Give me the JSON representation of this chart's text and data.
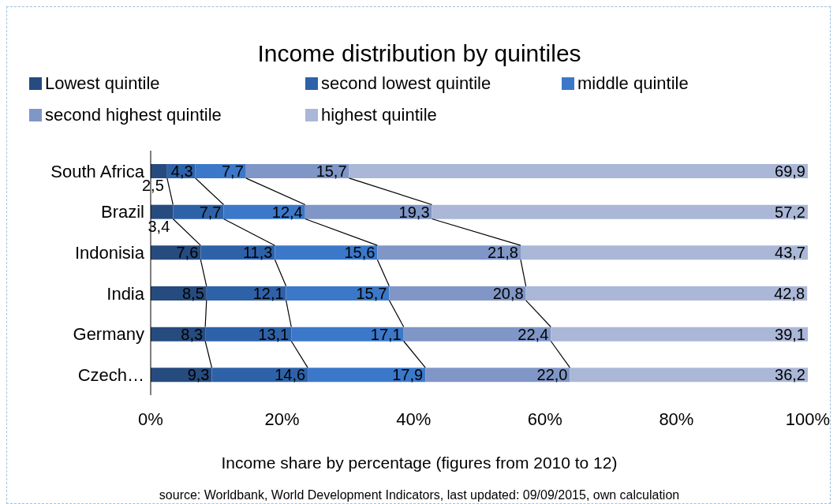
{
  "chart_data": {
    "type": "bar",
    "orientation": "horizontal",
    "stacked": true,
    "title": "Income distribution by quintiles",
    "xlabel": "Income share by percentage  (figures from 2010 to 12)",
    "annotations": [
      "source: Worldbank, World Development Indicators, last updated: 09/09/2015, own calculation"
    ],
    "categories": [
      "South Africa",
      "Brazil",
      "Indonisia",
      "India",
      "Germany",
      "Czech…"
    ],
    "series": [
      {
        "name": "Lowest quintile",
        "color": "#264b7e",
        "values": [
          2.5,
          3.4,
          7.6,
          8.5,
          8.3,
          9.3
        ],
        "value_labels": [
          "2,5",
          "3,4",
          "7,6",
          "8,5",
          "8,3",
          "9,3"
        ]
      },
      {
        "name": "second lowest quintile",
        "color": "#2e62a8",
        "values": [
          4.3,
          7.7,
          11.3,
          12.1,
          13.1,
          14.6
        ],
        "value_labels": [
          "4,3",
          "7,7",
          "11,3",
          "12,1",
          "13,1",
          "14,6"
        ]
      },
      {
        "name": "middle quintile",
        "color": "#3b78c9",
        "values": [
          7.7,
          12.4,
          15.6,
          15.7,
          17.1,
          17.9
        ],
        "value_labels": [
          "7,7",
          "12,4",
          "15,6",
          "15,7",
          "17,1",
          "17,9"
        ]
      },
      {
        "name": "second highest quintile",
        "color": "#7f96c6",
        "values": [
          15.7,
          19.3,
          21.8,
          20.8,
          22.4,
          22.0
        ],
        "value_labels": [
          "15,7",
          "19,3",
          "21,8",
          "20,8",
          "22,4",
          "22,0"
        ]
      },
      {
        "name": "highest quintile",
        "color": "#aab7d7",
        "values": [
          69.9,
          57.2,
          43.7,
          42.8,
          39.1,
          36.2
        ],
        "value_labels": [
          "69,9",
          "57,2",
          "43,7",
          "42,8",
          "39,1",
          "36,2"
        ]
      }
    ],
    "xlim": [
      0,
      100
    ],
    "xticks": [
      {
        "value": 0,
        "label": "0%"
      },
      {
        "value": 20,
        "label": "20%"
      },
      {
        "value": 40,
        "label": "40%"
      },
      {
        "value": 60,
        "label": "60%"
      },
      {
        "value": 80,
        "label": "80%"
      },
      {
        "value": 100,
        "label": "100%"
      }
    ],
    "legend": "top",
    "grid": false
  }
}
